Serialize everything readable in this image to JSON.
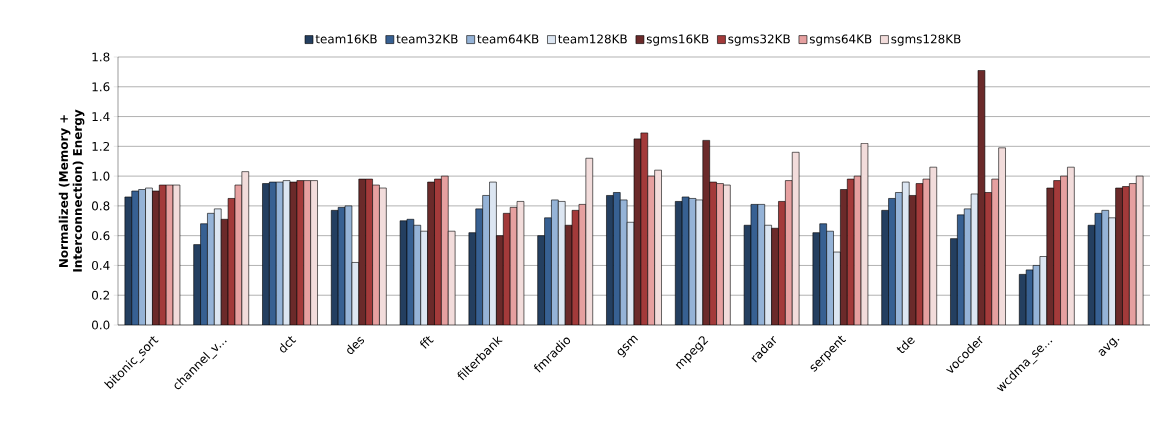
{
  "chart_data": {
    "type": "bar",
    "ylabel": "Normalized (Memory + Interconnection) Energy",
    "categories": [
      "bitonic_sort",
      "channel_v...",
      "dct",
      "des",
      "fft",
      "filterbank",
      "fmradio",
      "gsm",
      "mpeg2",
      "radar",
      "serpent",
      "tde",
      "vocoder",
      "wcdma_se...",
      "avg."
    ],
    "series": [
      {
        "name": "team16KB",
        "color": "#243f60",
        "values": [
          0.86,
          0.54,
          0.95,
          0.77,
          0.7,
          0.62,
          0.6,
          0.87,
          0.83,
          0.67,
          0.62,
          0.77,
          0.58,
          0.34,
          0.67
        ]
      },
      {
        "name": "team32KB",
        "color": "#376092",
        "values": [
          0.9,
          0.68,
          0.96,
          0.79,
          0.71,
          0.78,
          0.72,
          0.89,
          0.86,
          0.81,
          0.68,
          0.85,
          0.74,
          0.37,
          0.75
        ]
      },
      {
        "name": "team64KB",
        "color": "#95b3d7",
        "values": [
          0.91,
          0.75,
          0.96,
          0.8,
          0.67,
          0.87,
          0.84,
          0.84,
          0.85,
          0.81,
          0.63,
          0.89,
          0.78,
          0.4,
          0.77
        ]
      },
      {
        "name": "team128KB",
        "color": "#dce6f2",
        "values": [
          0.92,
          0.78,
          0.97,
          0.42,
          0.63,
          0.96,
          0.83,
          0.69,
          0.84,
          0.67,
          0.49,
          0.96,
          0.88,
          0.46,
          0.72
        ]
      },
      {
        "name": "sgms16KB",
        "color": "#6b2a2a",
        "values": [
          0.9,
          0.71,
          0.96,
          0.98,
          0.96,
          0.6,
          0.67,
          1.25,
          1.24,
          0.65,
          0.91,
          0.87,
          1.71,
          0.92,
          0.92
        ]
      },
      {
        "name": "sgms32KB",
        "color": "#a33a3a",
        "values": [
          0.94,
          0.85,
          0.97,
          0.98,
          0.98,
          0.75,
          0.77,
          1.29,
          0.96,
          0.83,
          0.98,
          0.95,
          0.89,
          0.97,
          0.93
        ]
      },
      {
        "name": "sgms64KB",
        "color": "#e6a0a0",
        "values": [
          0.94,
          0.94,
          0.97,
          0.94,
          1.0,
          0.79,
          0.81,
          1.0,
          0.95,
          0.97,
          1.0,
          0.98,
          0.98,
          1.0,
          0.95
        ]
      },
      {
        "name": "sgms128KB",
        "color": "#f2dcdb",
        "values": [
          0.94,
          1.03,
          0.97,
          0.92,
          0.63,
          0.83,
          1.12,
          1.04,
          0.94,
          1.16,
          1.22,
          1.06,
          1.19,
          1.06,
          1.0
        ]
      }
    ],
    "ylim": [
      0,
      1.8
    ],
    "yticks": [
      {
        "value": 0,
        "label": "0.0"
      },
      {
        "value": 0.2,
        "label": "0.2"
      },
      {
        "value": 0.4,
        "label": "0.4"
      },
      {
        "value": 0.6,
        "label": "0.6"
      },
      {
        "value": 0.8,
        "label": "0.8"
      },
      {
        "value": 1.0,
        "label": "1.0"
      },
      {
        "value": 1.2,
        "label": "1.2"
      },
      {
        "value": 1.4,
        "label": "1.4"
      },
      {
        "value": 1.6,
        "label": "1.6"
      },
      {
        "value": 1.8,
        "label": "1.8"
      }
    ],
    "grid": "y",
    "legend": "top"
  }
}
